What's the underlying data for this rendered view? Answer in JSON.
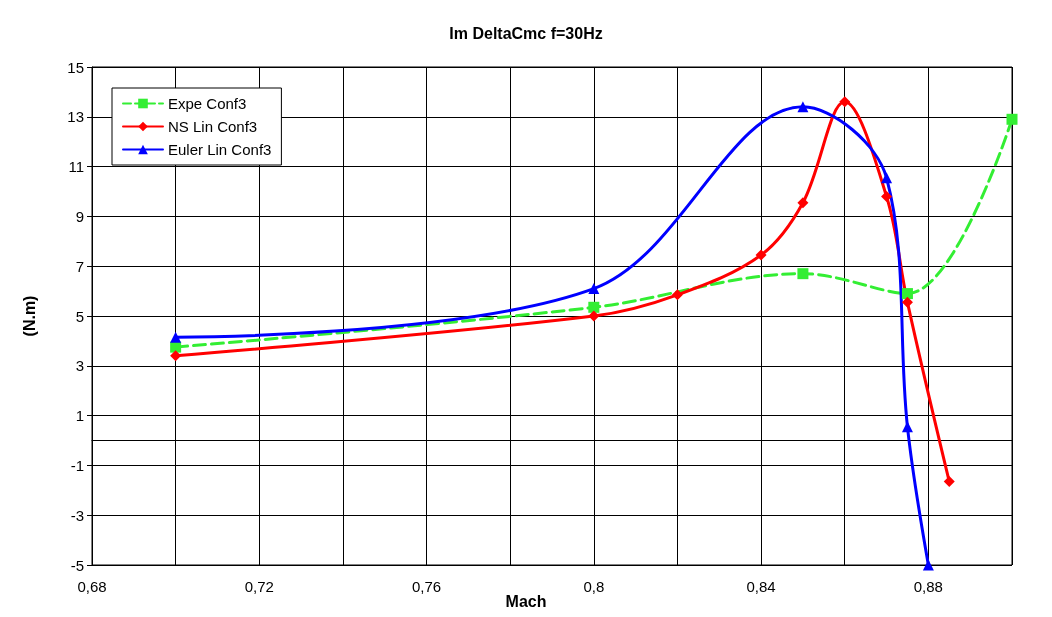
{
  "chart_data": {
    "type": "line",
    "title": "Im DeltaCmc f=30Hz",
    "xlabel": "Mach",
    "ylabel": "(N.m)",
    "xlim": [
      0.68,
      0.9
    ],
    "xticks": [
      {
        "value": 0.68,
        "label": "0,68"
      },
      {
        "value": 0.7,
        "label": null
      },
      {
        "value": 0.72,
        "label": "0,72"
      },
      {
        "value": 0.74,
        "label": null
      },
      {
        "value": 0.76,
        "label": "0,76"
      },
      {
        "value": 0.78,
        "label": null
      },
      {
        "value": 0.8,
        "label": "0,8"
      },
      {
        "value": 0.82,
        "label": null
      },
      {
        "value": 0.84,
        "label": "0,84"
      },
      {
        "value": 0.86,
        "label": null
      },
      {
        "value": 0.88,
        "label": "0,88"
      },
      {
        "value": 0.9,
        "label": null
      }
    ],
    "ylim": [
      -5,
      15
    ],
    "yticks": [
      -5,
      -3,
      -1,
      1,
      3,
      5,
      7,
      9,
      11,
      13,
      15
    ],
    "grid": true,
    "legend": "top left",
    "series": [
      {
        "name": "Expe Conf3",
        "color": "#33ee33",
        "marker": "square",
        "line_style": "dashed",
        "x": [
          0.7,
          0.8,
          0.85,
          0.875,
          0.9
        ],
        "values": [
          3.75,
          5.35,
          6.7,
          5.9,
          12.9
        ]
      },
      {
        "name": "NS Lin Conf3",
        "color": "#ff0000",
        "marker": "diamond",
        "line_style": "solid",
        "x": [
          0.7,
          0.8,
          0.82,
          0.84,
          0.85,
          0.86,
          0.87,
          0.875,
          0.885
        ],
        "values": [
          3.4,
          5.0,
          5.85,
          7.45,
          9.55,
          13.6,
          9.8,
          5.55,
          -1.65
        ]
      },
      {
        "name": "Euler Lin Conf3",
        "color": "#0000ff",
        "marker": "triangle",
        "line_style": "solid",
        "x": [
          0.7,
          0.8,
          0.85,
          0.87,
          0.875,
          0.88
        ],
        "values": [
          4.15,
          6.1,
          13.4,
          10.55,
          0.55,
          -5
        ]
      }
    ]
  }
}
